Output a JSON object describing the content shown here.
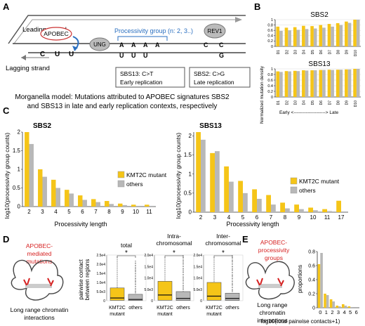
{
  "panels": {
    "A": "A",
    "B": "B",
    "C": "C",
    "D": "D",
    "E": "E"
  },
  "panel_a": {
    "leading_strand": "Leading strand",
    "lagging_strand": "Lagging strand",
    "apobec": "APOBEC",
    "ung": "UNG",
    "rev1": "REV1",
    "processivity_group": "Processivity group (n: 2, 3..)",
    "lag_seq": [
      "C",
      "U",
      "U"
    ],
    "top_seq": [
      "A",
      "A",
      "A",
      "A"
    ],
    "bottom_seq": [
      "U",
      "U",
      "U"
    ],
    "rev1_top_seq": [
      "C",
      "C"
    ],
    "rev1_bottom_seq": [
      "G"
    ],
    "box1_line1": "SBS13: C>T",
    "box1_line2": "Early replication",
    "box2_line1": "SBS2: C>G",
    "box2_line2": "Late replication"
  },
  "caption": {
    "line1": "Morganella model: Mutations attributed to APOBEC signatures SBS2",
    "line2": "and SBS13 in late and early replication contexts, respectively"
  },
  "panel_b": {
    "ylabel": "Normalized mutation density",
    "xaxis_note": "Early <---------------------> Late",
    "colors": {
      "a": "#f5c518",
      "b": "#b8b8b8"
    }
  },
  "panel_c": {
    "xlabel": "Processivity length",
    "ylabel": "log10(processivity group counts)",
    "legend": [
      "KMT2C mutant",
      "others"
    ]
  },
  "panel_d": {
    "left_label_red": [
      "APOBEC-",
      "mediated",
      "mutations"
    ],
    "left_label_black": [
      "Long range chromatin",
      "interactions"
    ],
    "ylabel": [
      "pairwise contact",
      "between regions"
    ],
    "titles": [
      [
        "total"
      ],
      [
        "Intra-",
        "chromosomal"
      ],
      [
        "Inter-",
        "chromosomal"
      ]
    ],
    "xcat": [
      [
        "KMT2C",
        "mutant"
      ],
      [
        "others"
      ]
    ],
    "sig": "*"
  },
  "panel_e": {
    "label_red": [
      "APOBEC-",
      "processivity",
      "groups"
    ],
    "label_black": [
      "Long range",
      "chromatin",
      "interactions"
    ],
    "ylabel": "proportions",
    "xlabel": "log10(total pairwise contacts+1)"
  },
  "chart_data": [
    {
      "type": "bar",
      "panel": "B-top",
      "title": "SBS2",
      "categories": [
        "D1",
        "D2",
        "D3",
        "D4",
        "D5",
        "D6",
        "D7",
        "D8",
        "D9",
        "D10"
      ],
      "ylim": [
        0,
        1.0
      ],
      "yticks": [
        0,
        0.2,
        0.4,
        0.6,
        0.8,
        1.0
      ],
      "series": [
        {
          "values": [
            0.74,
            0.7,
            0.72,
            0.77,
            0.76,
            0.8,
            0.84,
            0.87,
            0.93,
            1.0
          ]
        },
        {
          "values": [
            0.58,
            0.6,
            0.62,
            0.65,
            0.67,
            0.7,
            0.74,
            0.8,
            0.88,
            1.0
          ]
        }
      ]
    },
    {
      "type": "bar",
      "panel": "B-bottom",
      "title": "SBS13",
      "categories": [
        "D1",
        "D2",
        "D3",
        "D4",
        "D5",
        "D6",
        "D7",
        "D8",
        "D9",
        "D10"
      ],
      "ylim": [
        0,
        1.0
      ],
      "yticks": [
        0,
        0.2,
        0.4,
        0.6,
        0.8,
        1.0
      ],
      "series": [
        {
          "values": [
            0.91,
            0.92,
            0.93,
            0.95,
            0.95,
            0.96,
            0.97,
            0.97,
            0.98,
            1.0
          ]
        },
        {
          "values": [
            0.89,
            0.91,
            0.92,
            0.94,
            0.95,
            0.96,
            0.96,
            0.97,
            0.98,
            1.0
          ]
        }
      ]
    },
    {
      "type": "bar",
      "panel": "C-left",
      "title": "SBS2",
      "categories": [
        "2",
        "3",
        "4",
        "5",
        "6",
        "7",
        "8",
        "9",
        "10",
        "11"
      ],
      "ylim": [
        0,
        2.0
      ],
      "yticks": [
        0,
        0.5,
        1.0,
        1.5,
        2.0
      ],
      "series": [
        {
          "name": "KMT2C mutant",
          "values": [
            2.0,
            1.0,
            0.72,
            0.45,
            0.3,
            0.2,
            0.15,
            0.08,
            0.05,
            0.05
          ]
        },
        {
          "name": "others",
          "values": [
            1.68,
            0.8,
            0.5,
            0.35,
            0.18,
            0.12,
            0.07,
            0.04,
            0.02,
            0.02
          ]
        }
      ]
    },
    {
      "type": "bar",
      "panel": "C-right",
      "title": "SBS13",
      "categories": [
        "2",
        "3",
        "4",
        "5",
        "6",
        "7",
        "8",
        "9",
        "10",
        "11",
        "17"
      ],
      "ylim": [
        0,
        2.1
      ],
      "yticks": [
        0,
        0.5,
        1.0,
        1.5,
        2.0
      ],
      "series": [
        {
          "name": "KMT2C mutant",
          "values": [
            2.1,
            1.55,
            1.2,
            0.82,
            0.6,
            0.45,
            0.25,
            0.2,
            0.12,
            0.08,
            0.3
          ]
        },
        {
          "name": "others",
          "values": [
            1.9,
            1.6,
            0.8,
            0.5,
            0.35,
            0.2,
            0.1,
            0.08,
            0.05,
            0.03,
            0.0
          ]
        }
      ]
    },
    {
      "type": "box",
      "panel": "D",
      "groups": [
        "total",
        "Intra-chromosomal",
        "Inter-chromosomal"
      ],
      "ytick_labels": [
        [
          "0",
          "5.0e3",
          "1.0e4",
          "1.5e4",
          "2.0e4",
          "2.5e4"
        ],
        [
          "0",
          "5.0e3",
          "1.0e4",
          "1.5e4",
          "2.0e4"
        ],
        [
          "0",
          "5.0e3",
          "1.0e4",
          "1.5e4",
          "2.0e4"
        ]
      ],
      "ymax": [
        25000,
        20000,
        20000
      ],
      "boxes": [
        [
          {
            "q1": 200,
            "median": 1500,
            "q3": 7000,
            "whisk": 24000
          },
          {
            "q1": 100,
            "median": 700,
            "q3": 3500,
            "whisk": 22000
          }
        ],
        [
          {
            "q1": 200,
            "median": 2500,
            "q3": 8500,
            "whisk": 19000
          },
          {
            "q1": 100,
            "median": 1000,
            "q3": 4000,
            "whisk": 20000
          }
        ],
        [
          {
            "q1": 200,
            "median": 2000,
            "q3": 8000,
            "whisk": 19000
          },
          {
            "q1": 100,
            "median": 1000,
            "q3": 3300,
            "whisk": 20000
          }
        ]
      ]
    },
    {
      "type": "bar",
      "panel": "E",
      "categories": [
        "0",
        "1",
        "2",
        "3",
        "4",
        "5",
        "6"
      ],
      "ylim": [
        0,
        0.8
      ],
      "yticks": [
        0,
        0.2,
        0.4,
        0.6,
        0.8
      ],
      "series": [
        {
          "values": [
            0.62,
            0.2,
            0.12,
            0.03,
            0.05,
            0.02,
            0.0
          ]
        },
        {
          "values": [
            0.78,
            0.18,
            0.09,
            0.02,
            0.03,
            0.01,
            0.0
          ]
        }
      ]
    }
  ]
}
